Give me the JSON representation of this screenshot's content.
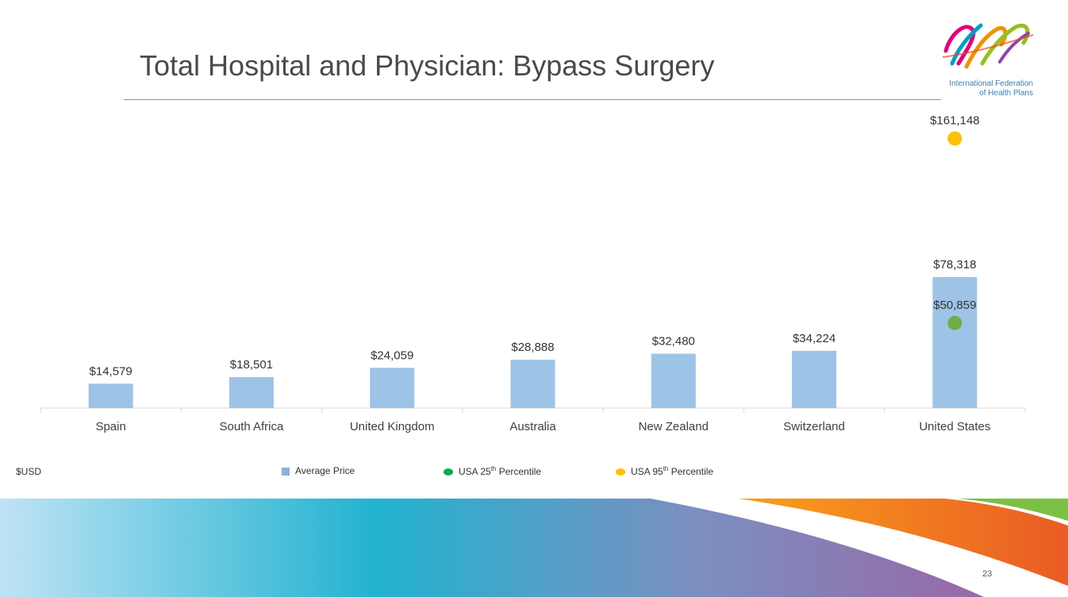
{
  "title": "Total Hospital and Physician: Bypass Surgery",
  "logo": {
    "line1": "International Federation",
    "line2": "of Health Plans"
  },
  "footnote": "$USD",
  "legend": {
    "average_price": "Average Price",
    "p25_prefix": "USA 25",
    "p25_sup": "th",
    "p25_suffix": " Percentile",
    "p95_prefix": "USA 95",
    "p95_sup": "th",
    "p95_suffix": " Percentile"
  },
  "page_number": "23",
  "colors": {
    "bar": "#9dc3e6",
    "p25": "#70ad47",
    "p95": "#ffc000",
    "title": "#4a4a4a"
  },
  "chart_data": {
    "type": "bar",
    "categories": [
      "Spain",
      "South Africa",
      "United Kingdom",
      "Australia",
      "New Zealand",
      "Switzerland",
      "United States"
    ],
    "series": [
      {
        "name": "Average Price",
        "values": [
          14579,
          18501,
          24059,
          28888,
          32480,
          34224,
          78318
        ],
        "labels": [
          "$14,579",
          "$18,501",
          "$24,059",
          "$28,888",
          "$32,480",
          "$34,224",
          "$78,318"
        ]
      }
    ],
    "markers": [
      {
        "name": "USA 25th Percentile",
        "category": "United States",
        "value": 50859,
        "label": "$50,859",
        "color": "#70ad47"
      },
      {
        "name": "USA 95th Percentile",
        "category": "United States",
        "value": 161148,
        "label": "$161,148",
        "color": "#ffc000"
      }
    ],
    "ylim": [
      0,
      170000
    ],
    "grid": false,
    "legend_position": "bottom",
    "xlabel": "",
    "ylabel": "$USD"
  }
}
